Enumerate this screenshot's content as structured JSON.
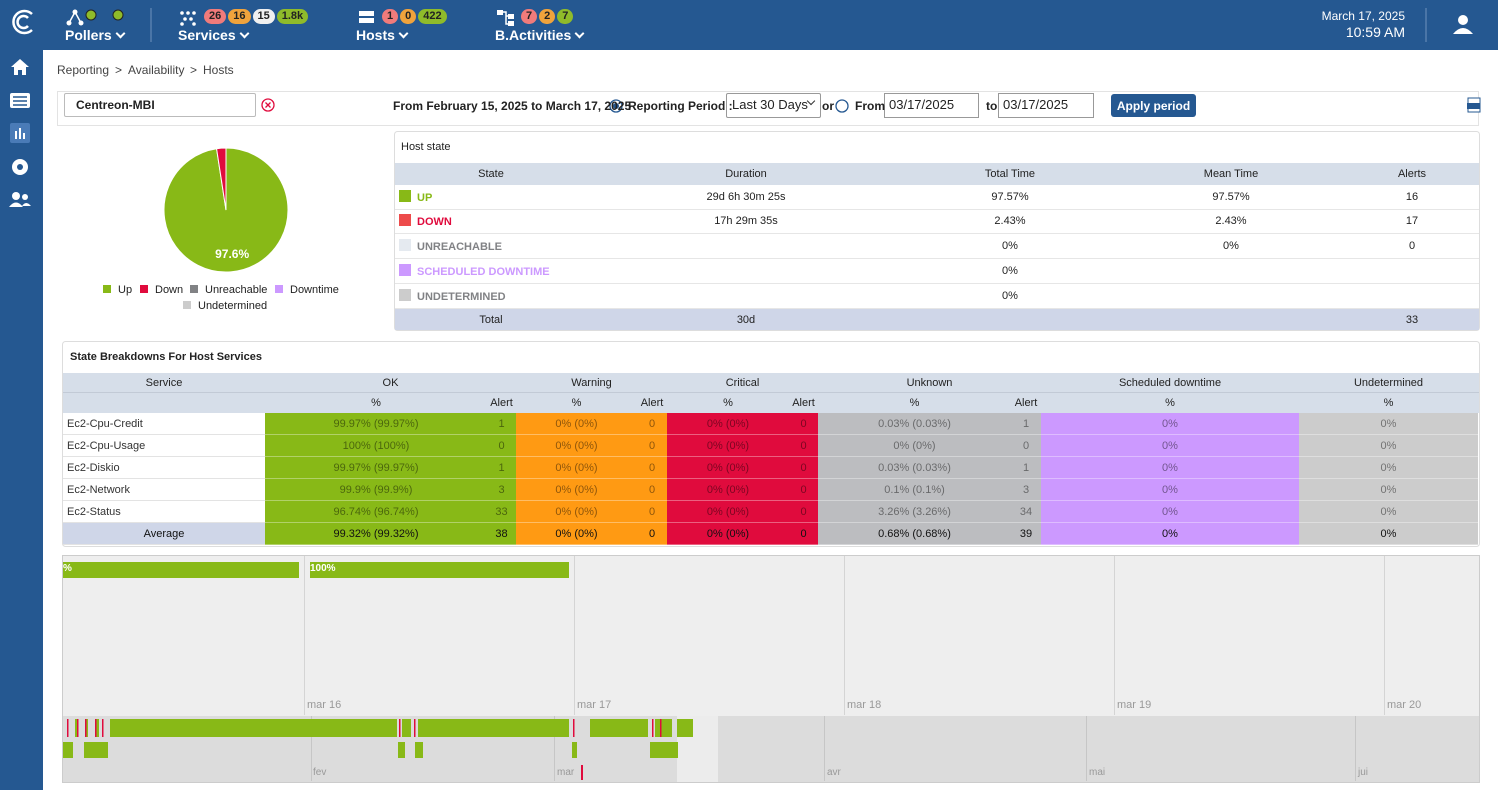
{
  "topbar": {
    "menus": [
      {
        "label": "Pollers"
      },
      {
        "label": "Services",
        "counts": [
          "26",
          "16",
          "15",
          "1.8k"
        ]
      },
      {
        "label": "Hosts",
        "counts": [
          "1",
          "0",
          "422"
        ]
      },
      {
        "label": "B.Activities",
        "counts": [
          "7",
          "2",
          "7"
        ]
      }
    ],
    "date": "March 17, 2025",
    "time": "10:59 AM"
  },
  "breadcrumb": {
    "items": [
      "Reporting",
      "Availability",
      "Hosts"
    ],
    "separator": ">"
  },
  "filter": {
    "host": "Centreon-MBI",
    "period_text": "From February 15, 2025 to March 17, 2025",
    "reporting_period_label": "Reporting Period :",
    "period_option": "Last 30 Days",
    "or": "or",
    "from": "From",
    "from_date": "03/17/2025",
    "to": "to",
    "to_date": "03/17/2025",
    "apply": "Apply period"
  },
  "chart_data": {
    "type": "pie",
    "categories": [
      "Up",
      "Down",
      "Unreachable",
      "Downtime",
      "Undetermined"
    ],
    "values": [
      97.57,
      2.43,
      0,
      0,
      0
    ],
    "value_labels": [
      "97.6%",
      null,
      null,
      null,
      null
    ],
    "colors": [
      "#88b917",
      "#e00b3d",
      "#818285",
      "#cc99ff",
      "#cccccc"
    ]
  },
  "host_state": {
    "title": "Host state",
    "columns": [
      "State",
      "Duration",
      "Total Time",
      "Mean Time",
      "Alerts"
    ],
    "rows": [
      {
        "state": "UP",
        "duration": "29d 6h 30m 25s",
        "total_time": "97.57%",
        "mean_time": "97.57%",
        "alerts": "16"
      },
      {
        "state": "DOWN",
        "duration": "17h 29m 35s",
        "total_time": "2.43%",
        "mean_time": "2.43%",
        "alerts": "17"
      },
      {
        "state": "UNREACHABLE",
        "total_time": "0%",
        "mean_time": "0%",
        "alerts": "0"
      },
      {
        "state": "SCHEDULED DOWNTIME",
        "total_time": "0%"
      },
      {
        "state": "UNDETERMINED",
        "total_time": "0%"
      }
    ],
    "total": {
      "label": "Total",
      "duration": "30d",
      "alerts": "33"
    }
  },
  "breakdown": {
    "title": "State Breakdowns For Host Services",
    "groups": [
      "Service",
      "OK",
      "Warning",
      "Critical",
      "Unknown",
      "Scheduled downtime",
      "Undetermined"
    ],
    "subheaders": [
      "%",
      "Alert",
      "%",
      "Alert",
      "%",
      "Alert",
      "%",
      "Alert",
      "%",
      "%"
    ],
    "rows": [
      [
        "Ec2-Cpu-Credit",
        "99.97% (99.97%)",
        "1",
        "0% (0%)",
        "0",
        "0% (0%)",
        "0",
        "0.03% (0.03%)",
        "1",
        "0%",
        "0%"
      ],
      [
        "Ec2-Cpu-Usage",
        "100% (100%)",
        "0",
        "0% (0%)",
        "0",
        "0% (0%)",
        "0",
        "0% (0%)",
        "0",
        "0%",
        "0%"
      ],
      [
        "Ec2-Diskio",
        "99.97% (99.97%)",
        "1",
        "0% (0%)",
        "0",
        "0% (0%)",
        "0",
        "0.03% (0.03%)",
        "1",
        "0%",
        "0%"
      ],
      [
        "Ec2-Network",
        "99.9% (99.9%)",
        "3",
        "0% (0%)",
        "0",
        "0% (0%)",
        "0",
        "0.1% (0.1%)",
        "3",
        "0%",
        "0%"
      ],
      [
        "Ec2-Status",
        "96.74% (96.74%)",
        "33",
        "0% (0%)",
        "0",
        "0% (0%)",
        "0",
        "3.26% (3.26%)",
        "34",
        "0%",
        "0%"
      ]
    ],
    "average": [
      "Average",
      "99.32% (99.32%)",
      "38",
      "0% (0%)",
      "0",
      "0% (0%)",
      "0",
      "0.68% (0.68%)",
      "39",
      "0%",
      "0%"
    ]
  },
  "timeline": {
    "bar_labels": [
      "%",
      "100%"
    ],
    "axis_labels": [
      "mar 16",
      "mar 17",
      "mar 18",
      "mar 19",
      "mar 20"
    ],
    "overview_labels": [
      "fev",
      "mar",
      "avr",
      "mai",
      "jui"
    ]
  }
}
